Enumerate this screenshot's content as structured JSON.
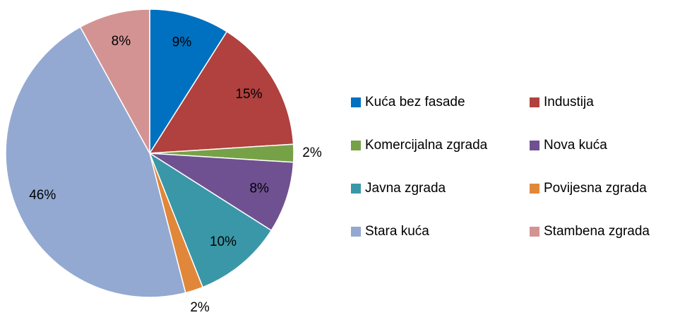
{
  "chart_data": {
    "type": "pie",
    "categories": [
      "Kuća bez fasade",
      "Industija",
      "Komercijalna zgrada",
      "Nova kuća",
      "Javna zgrada",
      "Povijesna zgrada",
      "Stara kuća",
      "Stambena zgrada"
    ],
    "values": [
      9,
      15,
      2,
      8,
      10,
      2,
      46,
      8
    ],
    "value_labels": [
      "9%",
      "15%",
      "2%",
      "8%",
      "10%",
      "2%",
      "46%",
      "8%"
    ],
    "colors": [
      "#0070c0",
      "#b0413e",
      "#77a146",
      "#6f5192",
      "#3a97a8",
      "#e0873a",
      "#93a9d1",
      "#d49393"
    ]
  }
}
